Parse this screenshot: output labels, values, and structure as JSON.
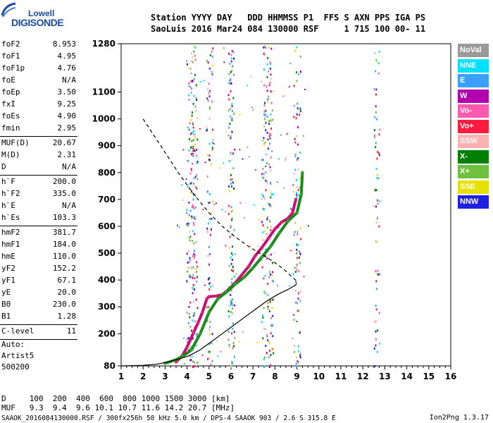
{
  "logo": {
    "top": "Lowell",
    "main": "DIGISONDE"
  },
  "header": {
    "line1": "Station YYYY DAY   DDD HHMMSS P1  FFS S AXN PPS IGA PS",
    "line2": "SaoLuis 2016 Mar24 084 130000 RSF     1 715 100 00- 11"
  },
  "params": [
    {
      "label": "foF2",
      "value": "8.953"
    },
    {
      "label": "foF1",
      "value": "4.95"
    },
    {
      "label": "foF1p",
      "value": "4.76"
    },
    {
      "label": "foE",
      "value": "N/A"
    },
    {
      "label": "foEp",
      "value": "3.50"
    },
    {
      "label": "fxI",
      "value": "9.25"
    },
    {
      "label": "foEs",
      "value": "4.90"
    },
    {
      "label": "fmin",
      "value": "2.95"
    },
    {
      "label": "MUF(D)",
      "value": "20.67"
    },
    {
      "label": "M(D)",
      "value": "2.31"
    },
    {
      "label": "D",
      "value": "N/A"
    },
    {
      "label": "h`F",
      "value": "200.0"
    },
    {
      "label": "h`F2",
      "value": "335.0"
    },
    {
      "label": "h`E",
      "value": "N/A"
    },
    {
      "label": "h`Es",
      "value": "103.3"
    },
    {
      "label": "hmF2",
      "value": "381.7"
    },
    {
      "label": "hmF1",
      "value": "184.0"
    },
    {
      "label": "hmE",
      "value": "110.0"
    },
    {
      "label": "yF2",
      "value": "152.2"
    },
    {
      "label": "yF1",
      "value": "67.1"
    },
    {
      "label": "yE",
      "value": "20.0"
    },
    {
      "label": "B0",
      "value": "230.0"
    },
    {
      "label": "B1",
      "value": "1.28"
    },
    {
      "label": "C-level",
      "value": "11"
    }
  ],
  "auto": {
    "line1": "Auto:",
    "line2": "Artist5",
    "line3": "500200"
  },
  "legend": [
    {
      "label": "NoVal",
      "color": "#9a9a9a"
    },
    {
      "label": "NNE",
      "color": "#00e0ff"
    },
    {
      "label": "E",
      "color": "#3aa0ff"
    },
    {
      "label": "W",
      "color": "#b000b0"
    },
    {
      "label": "Vo-",
      "color": "#ff5ab0"
    },
    {
      "label": "Vo+",
      "color": "#ff1a40"
    },
    {
      "label": "SSW",
      "color": "#ffb0b0"
    },
    {
      "label": "X-",
      "color": "#008000"
    },
    {
      "label": "X+",
      "color": "#70c040"
    },
    {
      "label": "SSE",
      "color": "#e8e000"
    },
    {
      "label": "NNW",
      "color": "#2020e0"
    }
  ],
  "footer": {
    "d_line": "D     100  200  400  600  800 1000 1500 3000 [km]",
    "muf_line": "MUF   9.3  9.4  9.6 10.1 10.7 11.6 14.2 20.7 [MHz]",
    "file_line": "SAAOK_2016084130000.RSF / 300fx256h 50 kHz 5.0 km / DPS-4 SAAOK 903 / 2.6 S 315.8 E",
    "version": "Ion2Png 1.3.17"
  },
  "chart_data": {
    "type": "scatter",
    "xlabel": "",
    "ylabel": "",
    "xlim": [
      1,
      16
    ],
    "ylim": [
      80,
      1280
    ],
    "x_ticks": [
      1,
      2,
      3,
      4,
      5,
      6,
      7,
      8,
      9,
      10,
      11,
      12,
      13,
      14,
      15,
      16
    ],
    "y_ticks": [
      80,
      200,
      300,
      400,
      500,
      600,
      700,
      800,
      900,
      1000,
      1100,
      1280
    ],
    "series": [
      {
        "style": "ordinary-trace",
        "x": [
          3.5,
          3.8,
          4.0,
          4.3,
          4.5,
          4.7,
          4.9,
          5.0,
          5.3,
          5.6,
          5.9,
          6.2,
          6.5,
          6.8,
          7.1,
          7.4,
          7.7,
          8.0,
          8.3,
          8.6,
          8.8,
          8.95
        ],
        "y": [
          95,
          120,
          150,
          205,
          240,
          280,
          330,
          338,
          340,
          345,
          365,
          390,
          420,
          450,
          490,
          520,
          555,
          590,
          615,
          630,
          650,
          700
        ]
      },
      {
        "style": "extraordinary-trace",
        "x": [
          3.0,
          3.4,
          3.8,
          4.2,
          4.6,
          5.0,
          5.4,
          5.8,
          6.2,
          6.6,
          7.0,
          7.4,
          7.8,
          8.2,
          8.6,
          9.0,
          9.2,
          9.25
        ],
        "y": [
          90,
          100,
          115,
          140,
          200,
          280,
          330,
          355,
          385,
          410,
          445,
          485,
          525,
          575,
          620,
          650,
          720,
          800
        ]
      },
      {
        "style": "profile-dashed",
        "x": [
          2.0,
          2.8,
          3.6,
          4.3,
          5.0,
          5.6,
          6.2,
          6.8,
          7.4,
          7.9,
          8.4,
          8.8,
          9.0,
          8.95
        ],
        "y": [
          1000,
          900,
          800,
          720,
          650,
          600,
          560,
          525,
          495,
          470,
          440,
          410,
          395,
          381.7
        ]
      },
      {
        "style": "profile-solid",
        "x": [
          1.0,
          2.0,
          2.6,
          3.1,
          3.6,
          4.1,
          4.6,
          5.1,
          5.6,
          6.1,
          6.6,
          7.1,
          7.6,
          8.1,
          8.6,
          8.95
        ],
        "y": [
          80,
          82,
          86,
          94,
          105,
          118,
          140,
          170,
          200,
          230,
          260,
          290,
          320,
          345,
          365,
          381.7
        ]
      }
    ]
  }
}
